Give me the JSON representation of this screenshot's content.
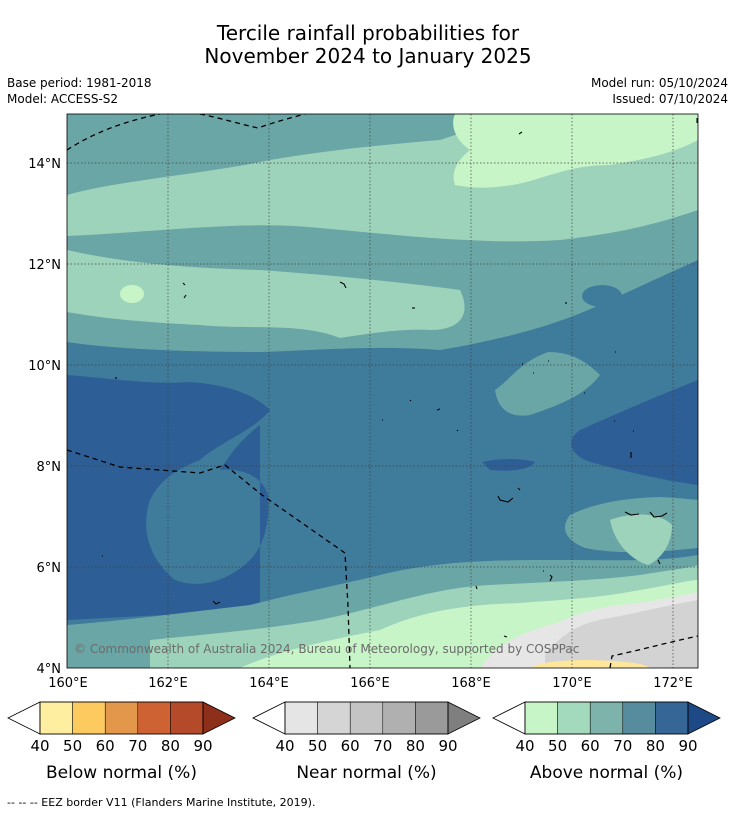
{
  "title": {
    "line1": "Tercile rainfall probabilities for",
    "line2": "November 2024 to January 2025"
  },
  "meta": {
    "base_period": "Base period: 1981-2018",
    "model": "Model: ACCESS-S2",
    "model_run": "Model run: 05/10/2024",
    "issued": "Issued: 07/10/2024"
  },
  "map": {
    "x_ticks": [
      "160°E",
      "162°E",
      "164°E",
      "166°E",
      "168°E",
      "170°E",
      "172°E"
    ],
    "y_ticks": [
      "14°N",
      "12°N",
      "10°N",
      "8°N",
      "6°N",
      "4°N"
    ],
    "copyright": "© Commonwealth of Australia 2024, Bureau of Meteorology, supported by COSPPac",
    "colors": {
      "above_50": "#c8f5c8",
      "above_60": "#9ed3bb",
      "above_70": "#6ba6a6",
      "above_80": "#3f7b9b",
      "above_90": "#2d5f96",
      "near_50": "#e6e6e6",
      "near_60": "#d3d3d3",
      "below_50": "#fee79a"
    }
  },
  "legends": [
    {
      "title": "Below normal (%)",
      "ticks": [
        "40",
        "50",
        "60",
        "70",
        "80",
        "90"
      ],
      "colors": [
        "#ffffff",
        "#feeea0",
        "#fdca60",
        "#e2974a",
        "#cf6232",
        "#b44a2a",
        "#8e2f1c"
      ]
    },
    {
      "title": "Near normal (%)",
      "ticks": [
        "40",
        "50",
        "60",
        "70",
        "80",
        "90"
      ],
      "colors": [
        "#ffffff",
        "#e5e5e5",
        "#d5d5d5",
        "#c4c4c4",
        "#b0b0b0",
        "#9a9a9a",
        "#7f7f7f"
      ]
    },
    {
      "title": "Above normal (%)",
      "ticks": [
        "40",
        "50",
        "60",
        "70",
        "80",
        "90"
      ],
      "colors": [
        "#ffffff",
        "#c8f5c8",
        "#a3d9bd",
        "#7db3aa",
        "#568c9e",
        "#356696",
        "#1d4a87"
      ]
    }
  ],
  "footnote": "--  --  -- EEZ border V11 (Flanders Marine Institute, 2019)."
}
